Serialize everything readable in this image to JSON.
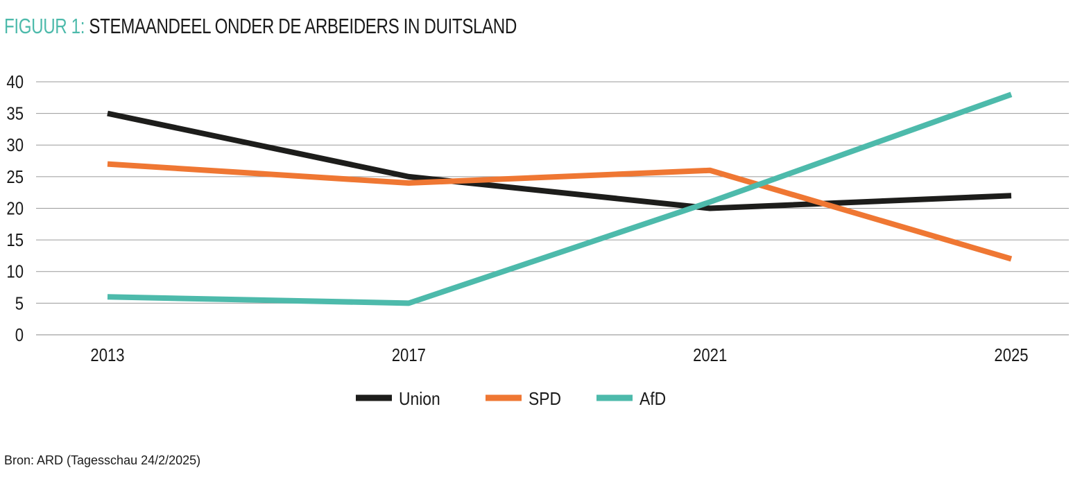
{
  "title": {
    "prefix": "FIGUUR 1:",
    "text": "STEMAANDEEL ONDER DE ARBEIDERS IN DUITSLAND"
  },
  "source": "Bron: ARD (Tagesschau 24/2/2025)",
  "chart_data": {
    "type": "line",
    "title": "FIGUUR 1: STEMAANDEEL ONDER DE ARBEIDERS IN DUITSLAND",
    "xlabel": "",
    "ylabel": "",
    "categories": [
      "2013",
      "2017",
      "2021",
      "2025"
    ],
    "ylim": [
      0,
      40
    ],
    "yticks": [
      0,
      5,
      10,
      15,
      20,
      25,
      30,
      35,
      40
    ],
    "grid": true,
    "legend": "bottom",
    "series": [
      {
        "name": "Union",
        "color": "#1d1d1b",
        "values": [
          35,
          25,
          20,
          22
        ]
      },
      {
        "name": "SPD",
        "color": "#ef7733",
        "values": [
          27,
          24,
          26,
          12
        ]
      },
      {
        "name": "AfD",
        "color": "#4dbaab",
        "values": [
          6,
          5,
          21,
          38
        ]
      }
    ]
  }
}
